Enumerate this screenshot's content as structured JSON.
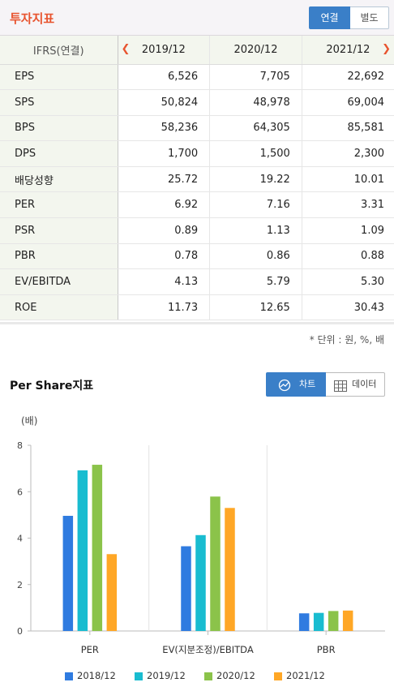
{
  "header": {
    "title": "투자지표",
    "tab_consolidated": "연결",
    "tab_separate": "별도"
  },
  "table": {
    "corner": "IFRS(연결)",
    "years": [
      "2019/12",
      "2020/12",
      "2021/12"
    ],
    "rows": [
      {
        "label": "EPS",
        "values": [
          "6,526",
          "7,705",
          "22,692"
        ]
      },
      {
        "label": "SPS",
        "values": [
          "50,824",
          "48,978",
          "69,004"
        ]
      },
      {
        "label": "BPS",
        "values": [
          "58,236",
          "64,305",
          "85,581"
        ]
      },
      {
        "label": "DPS",
        "values": [
          "1,700",
          "1,500",
          "2,300"
        ]
      },
      {
        "label": "배당성향",
        "values": [
          "25.72",
          "19.22",
          "10.01"
        ]
      },
      {
        "label": "PER",
        "values": [
          "6.92",
          "7.16",
          "3.31"
        ]
      },
      {
        "label": "PSR",
        "values": [
          "0.89",
          "1.13",
          "1.09"
        ]
      },
      {
        "label": "PBR",
        "values": [
          "0.78",
          "0.86",
          "0.88"
        ]
      },
      {
        "label": "EV/EBITDA",
        "values": [
          "4.13",
          "5.79",
          "5.30"
        ]
      },
      {
        "label": "ROE",
        "values": [
          "11.73",
          "12.65",
          "30.43"
        ]
      }
    ],
    "unit_note": "* 단위 : 원, %, 배"
  },
  "per_share": {
    "title": "Per Share지표",
    "chart_button": "차트",
    "data_button": "데이터"
  },
  "chart_data": {
    "type": "bar",
    "unit_label": "(배)",
    "categories": [
      "PER",
      "EV(지분조정)/EBITDA",
      "PBR"
    ],
    "ylim": [
      0,
      8
    ],
    "yticks": [
      0,
      2,
      4,
      6,
      8
    ],
    "series": [
      {
        "name": "2018/12",
        "color": "#2f7be0",
        "values": [
          4.96,
          3.65,
          0.76
        ]
      },
      {
        "name": "2019/12",
        "color": "#19bcd0",
        "values": [
          6.92,
          4.13,
          0.78
        ]
      },
      {
        "name": "2020/12",
        "color": "#8bc34a",
        "values": [
          7.16,
          5.79,
          0.86
        ]
      },
      {
        "name": "2021/12",
        "color": "#ffa726",
        "values": [
          3.31,
          5.3,
          0.88
        ]
      }
    ],
    "grid": "vertical category separators",
    "legend_position": "bottom"
  }
}
